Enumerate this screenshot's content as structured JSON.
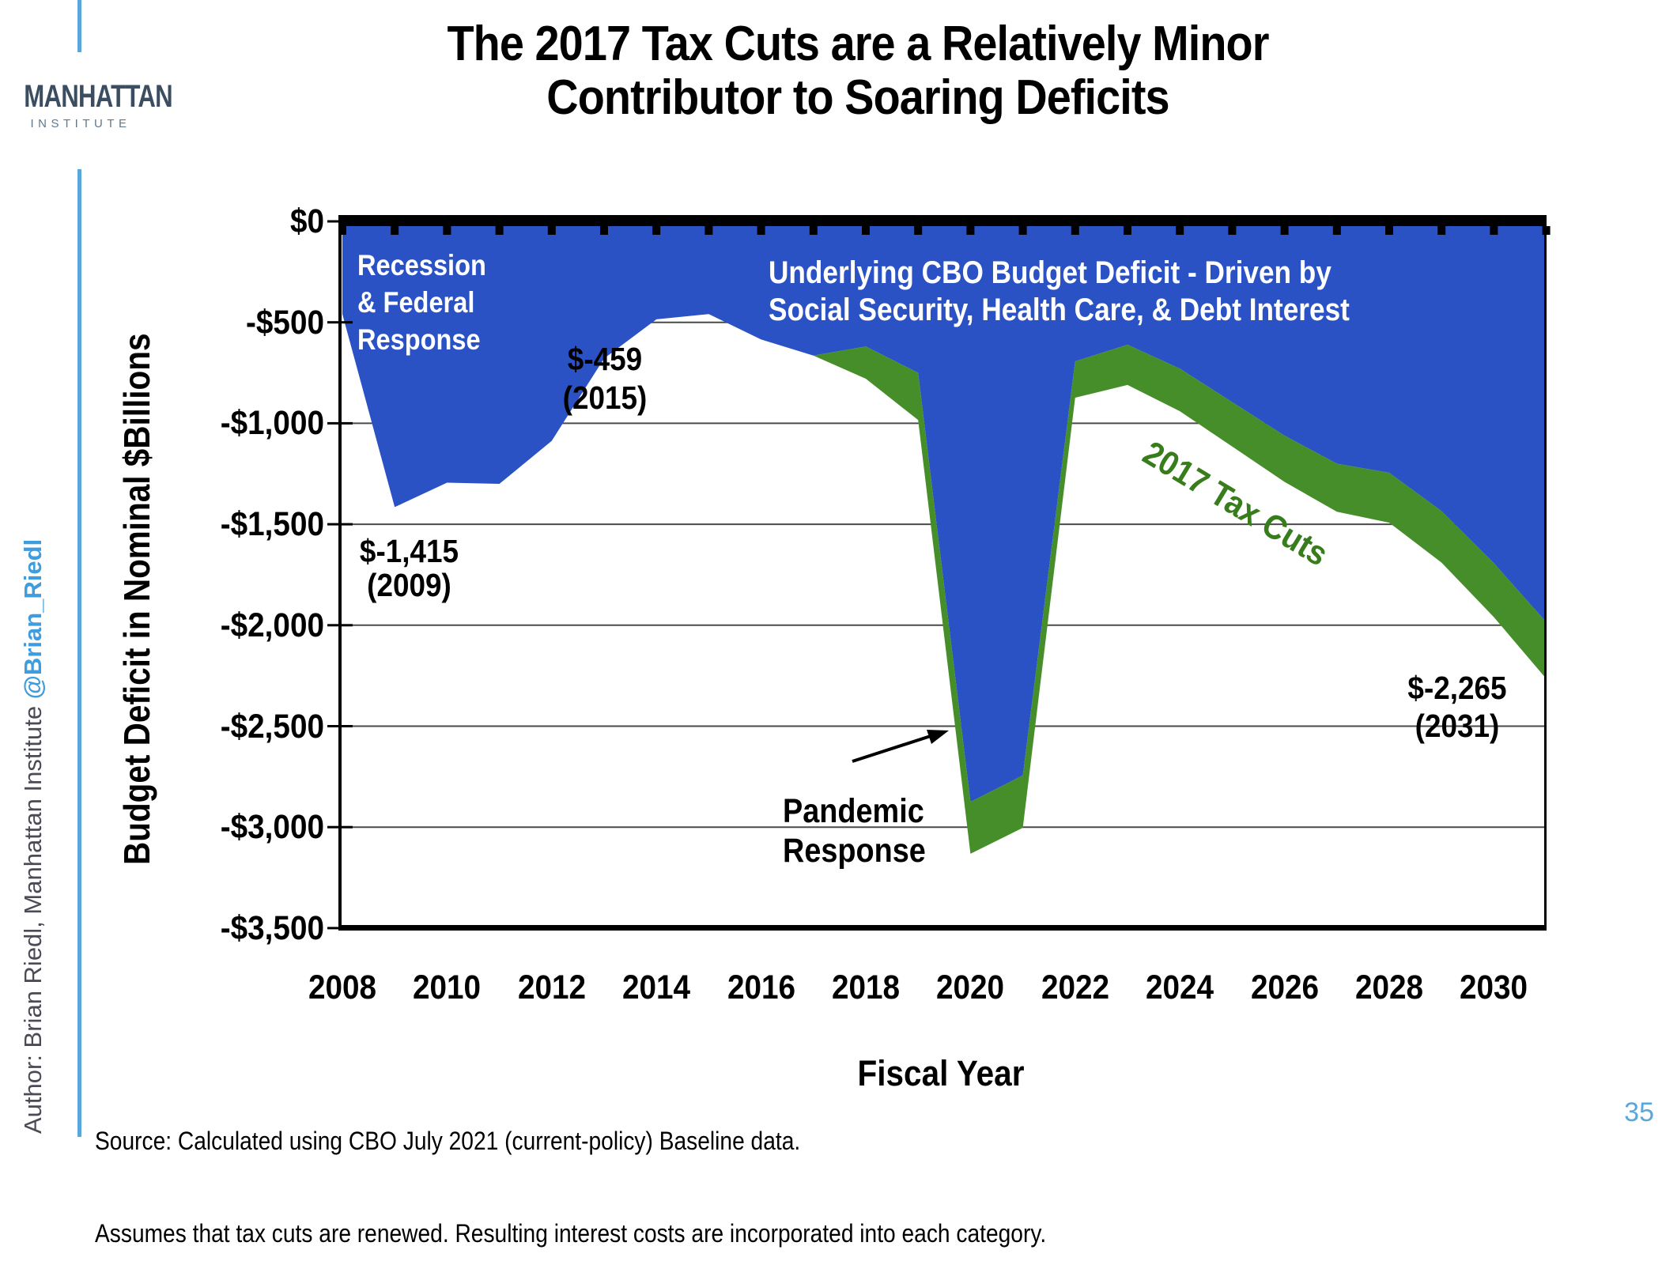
{
  "slide": {
    "title_lines": [
      "The 2017 Tax Cuts are a Relatively Minor",
      "Contributor to Soaring Deficits"
    ],
    "page_number": "35",
    "source_lines": [
      "Source: Calculated using CBO July 2021 (current-policy) Baseline data.",
      "Assumes that tax cuts are renewed.  Resulting interest costs are incorporated into each category."
    ]
  },
  "logo": {
    "name": "MANHATTAN",
    "subtitle": "INSTITUTE"
  },
  "sidebar": {
    "author_prefix": "Author: Brian Riedl, Manhattan Institute  ",
    "author_handle": "@Brian_Riedl"
  },
  "chart_data": {
    "type": "area",
    "title": "",
    "xlabel": "Fiscal Year",
    "ylabel": "Budget Deficit in Nominal $Billions",
    "years": [
      2008,
      2009,
      2010,
      2011,
      2012,
      2013,
      2014,
      2015,
      2016,
      2017,
      2018,
      2019,
      2020,
      2021,
      2022,
      2023,
      2024,
      2025,
      2026,
      2027,
      2028,
      2029,
      2030,
      2031
    ],
    "total_deficit": [
      -459,
      -1415,
      -1294,
      -1300,
      -1087,
      -679,
      -485,
      -459,
      -585,
      -665,
      -779,
      -984,
      -3132,
      -3003,
      -873,
      -810,
      -940,
      -1115,
      -1290,
      -1438,
      -1492,
      -1690,
      -1960,
      -2265
    ],
    "tax_cuts_portion": [
      0,
      0,
      0,
      0,
      0,
      0,
      0,
      0,
      0,
      0,
      -159,
      -234,
      -257,
      -259,
      -180,
      -199,
      -211,
      -220,
      -229,
      -238,
      -247,
      -255,
      -267,
      -280
    ],
    "series_note": "blue area = $0 down to underlying CBO deficit (total minus tax cuts); green band = 2017 tax cuts portion, so green bottom edge = total deficit",
    "ylim": [
      0,
      -3500
    ],
    "ytick_values": [
      0,
      -500,
      -1000,
      -1500,
      -2000,
      -2500,
      -3000,
      -3500
    ],
    "ytick_labels": [
      "$0",
      "-$500",
      "-$1,000",
      "-$1,500",
      "-$2,000",
      "-$2,500",
      "-$3,000",
      "-$3,500"
    ],
    "xtick_values": [
      2008,
      2010,
      2012,
      2014,
      2016,
      2018,
      2020,
      2022,
      2024,
      2026,
      2028,
      2030
    ],
    "grid": "horizontal gridlines every $500, thin dark gray",
    "legend_position": "none (in-chart text annotations)",
    "colors": {
      "blue_area": "#2a52c4",
      "green_area": "#468e2a",
      "tax_label_text": "#377d1c",
      "axis": "#000000",
      "gridline": "#4a4a4a"
    },
    "annotations": {
      "recession_lines": [
        "Recession",
        "& Federal",
        "Response"
      ],
      "underlying_lines": [
        "Underlying CBO Budget Deficit - Driven by",
        "Social Security, Health Care, & Debt Interest"
      ],
      "value_2015_lines": [
        "$-459",
        "(2015)"
      ],
      "value_2009_lines": [
        "$-1,415",
        "(2009)"
      ],
      "value_2031_lines": [
        "$-2,265",
        "(2031)"
      ],
      "pandemic_lines": [
        "Pandemic",
        "Response"
      ],
      "tax_cuts_label": "2017 Tax Cuts"
    }
  }
}
